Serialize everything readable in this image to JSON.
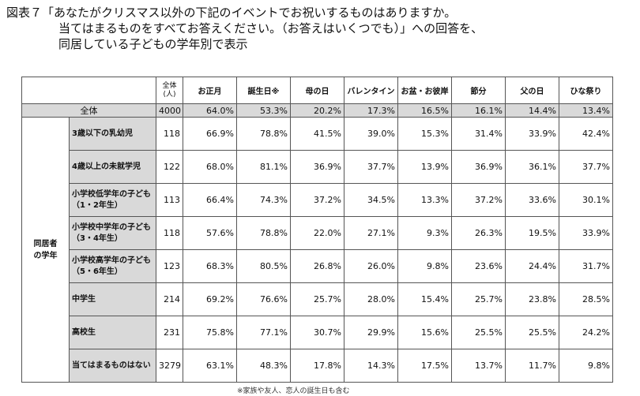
{
  "title": {
    "line1": "図表７「あなたがクリスマス以外の下記のイベントでお祝いするものはありますか。",
    "line2": "当てはまるものをすべてお答えください。（お答えはいくつでも）」への回答を、",
    "line3": "同居している子どもの学年別で表示"
  },
  "table": {
    "n_header": "全体\n(人)",
    "columns": [
      "お正月",
      "誕生日※",
      "母の日",
      "バレンタイン",
      "お盆・お彼岸",
      "節分",
      "父の日",
      "ひな祭り"
    ],
    "total": {
      "label": "全体",
      "n": "4000",
      "values": [
        "64.0%",
        "53.3%",
        "20.2%",
        "17.3%",
        "16.5%",
        "16.1%",
        "14.4%",
        "13.4%"
      ]
    },
    "group_label": "同居者\nの学年",
    "rows": [
      {
        "label": "3歳以下の乳幼児",
        "n": "118",
        "values": [
          "66.9%",
          "78.8%",
          "41.5%",
          "39.0%",
          "15.3%",
          "31.4%",
          "33.9%",
          "42.4%"
        ]
      },
      {
        "label": "4歳以上の未就学児",
        "n": "122",
        "values": [
          "68.0%",
          "81.1%",
          "36.9%",
          "37.7%",
          "13.9%",
          "36.9%",
          "36.1%",
          "37.7%"
        ]
      },
      {
        "label": "小学校低学年の子ども\n（1・2年生）",
        "n": "113",
        "values": [
          "66.4%",
          "74.3%",
          "37.2%",
          "34.5%",
          "13.3%",
          "37.2%",
          "33.6%",
          "30.1%"
        ]
      },
      {
        "label": "小学校中学年の子ども\n（3・4年生）",
        "n": "118",
        "values": [
          "57.6%",
          "78.8%",
          "22.0%",
          "27.1%",
          "9.3%",
          "26.3%",
          "19.5%",
          "33.9%"
        ]
      },
      {
        "label": "小学校高学年の子ども\n（5・6年生）",
        "n": "123",
        "values": [
          "68.3%",
          "80.5%",
          "26.8%",
          "26.0%",
          "9.8%",
          "23.6%",
          "24.4%",
          "31.7%"
        ]
      },
      {
        "label": "中学生",
        "n": "214",
        "values": [
          "69.2%",
          "76.6%",
          "25.7%",
          "28.0%",
          "15.4%",
          "25.7%",
          "23.8%",
          "28.5%"
        ]
      },
      {
        "label": "高校生",
        "n": "231",
        "values": [
          "75.8%",
          "77.1%",
          "30.7%",
          "29.9%",
          "15.6%",
          "25.5%",
          "25.5%",
          "24.2%"
        ]
      },
      {
        "label": "当てはまるものはない",
        "n": "3279",
        "values": [
          "63.1%",
          "48.3%",
          "17.8%",
          "14.3%",
          "17.5%",
          "13.7%",
          "11.7%",
          "9.8%"
        ]
      }
    ]
  },
  "footnote": "※家族や友人、恋人の誕生日も含む"
}
